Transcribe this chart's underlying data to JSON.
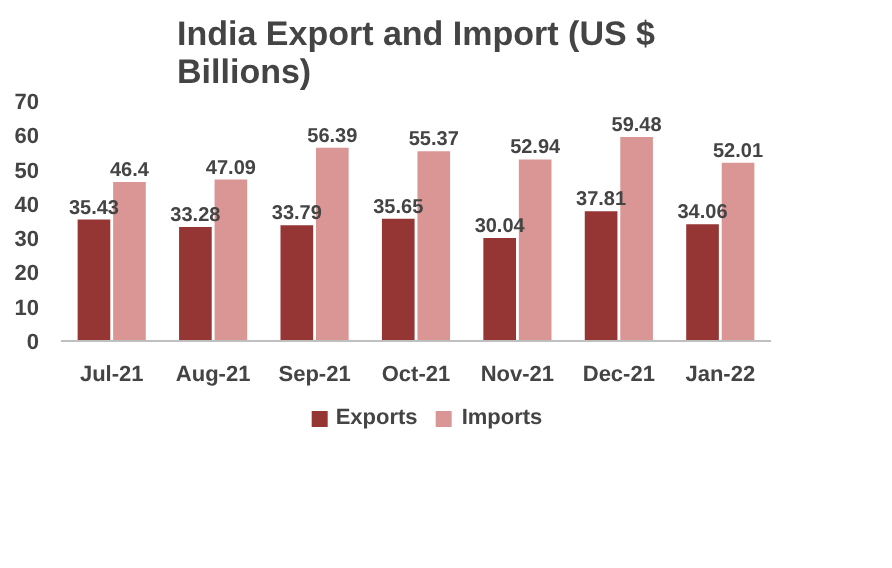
{
  "chart_data": {
    "type": "bar",
    "title": "India Export and Import (US $ Billions)",
    "categories": [
      "Jul-21",
      "Aug-21",
      "Sep-21",
      "Oct-21",
      "Nov-21",
      "Dec-21",
      "Jan-22"
    ],
    "series": [
      {
        "name": "Exports",
        "color": "#963634",
        "values": [
          35.43,
          33.28,
          33.79,
          35.65,
          30.04,
          37.81,
          34.06
        ]
      },
      {
        "name": "Imports",
        "color": "#da9694",
        "values": [
          46.4,
          47.09,
          56.39,
          55.37,
          52.94,
          59.48,
          52.01
        ]
      }
    ],
    "ylim": [
      0,
      70
    ],
    "yticks": [
      0,
      10,
      20,
      30,
      40,
      50,
      60,
      70
    ],
    "grid": false,
    "legend": "bottom",
    "data_labels": true
  }
}
